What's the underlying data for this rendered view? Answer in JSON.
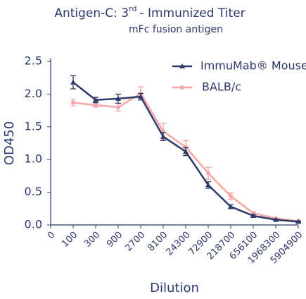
{
  "chart_data": {
    "type": "line",
    "title_prefix": "Antigen-C: 3",
    "title_superscript": "rd",
    "title_suffix": "- Immunized Titer",
    "subtitle": "mFc fusion antigen",
    "y_label": "OD450",
    "x_label": "Dilution",
    "categories": [
      "0",
      "100",
      "300",
      "900",
      "2700",
      "8100",
      "24300",
      "72900",
      "218700",
      "656100",
      "1968300",
      "5904900"
    ],
    "category_label_colors": [
      "#2b3a6b",
      "#2b3a6b",
      "#2b3a6b",
      "#2b3a6b",
      "#2b3a6b",
      "#2b3a6b",
      "#2b3a6b",
      "#2b3a6b",
      "#2b3a6b",
      "#e03c3c",
      "#2b3a6b",
      "#2b3a6b"
    ],
    "series": [
      {
        "name": "ImmuMab® Mouse",
        "color": "#2b3a6b",
        "marker": "triangle",
        "values": [
          null,
          2.18,
          1.91,
          1.93,
          1.96,
          1.35,
          1.12,
          0.61,
          0.28,
          0.14,
          0.08,
          0.05
        ],
        "errors": [
          null,
          0.1,
          0.04,
          0.07,
          0.05,
          0.06,
          0.06,
          0.05,
          0.03,
          0.02,
          0.01,
          0.01
        ]
      },
      {
        "name": "BALB/c",
        "color": "#f4a6a6",
        "marker": "circle",
        "values": [
          null,
          1.87,
          1.83,
          1.8,
          2.01,
          1.43,
          1.19,
          0.79,
          0.44,
          0.18,
          0.1,
          0.06
        ],
        "errors": [
          null,
          0.05,
          0.03,
          0.06,
          0.1,
          0.12,
          0.1,
          0.09,
          0.05,
          0.02,
          0.01,
          0.01
        ]
      }
    ],
    "ylim": [
      0,
      2.5
    ],
    "yticks": [
      {
        "value": 0,
        "label": "0.0"
      },
      0.5,
      {
        "value": 1,
        "label": "1.0"
      },
      1.5,
      {
        "value": 2,
        "label": "2.0"
      },
      2.5
    ],
    "legend": "upper right",
    "grid": false
  }
}
